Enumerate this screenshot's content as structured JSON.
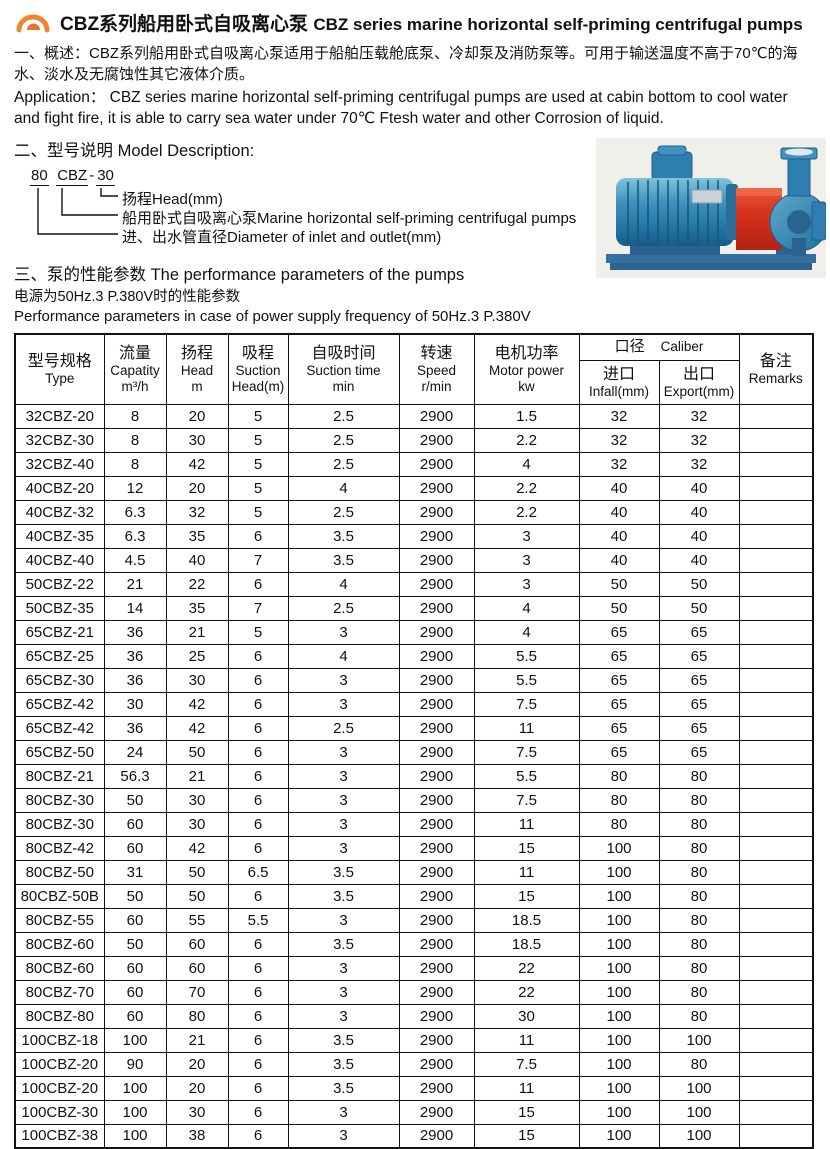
{
  "colors": {
    "accent_orange": "#ef8632",
    "accent_orange_dark": "#e87722",
    "pump_blue": "#2f7fae",
    "pump_blue_dark": "#1f5e8a",
    "pump_red": "#d7311f",
    "table_border": "#111111"
  },
  "header": {
    "title_zh": "CBZ系列船用卧式自吸离心泵",
    "title_en": "CBZ series marine horizontal self-priming centrifugal pumps",
    "logo_icon": "orange-arc-logo"
  },
  "overview": {
    "text_zh": "一、概述：CBZ系列船用卧式自吸离心泵适用于船舶压载舱底泵、冷却泵及消防泵等。可用于输送温度不高于70℃的海水、淡水及无腐蚀性其它液体介质。",
    "text_en": "Application：  CBZ series marine horizontal self-priming centrifugal pumps are used at cabin bottom to cool water and fight fire, it is able to carry sea water under 70℃ Ftesh water and other Corrosion of liquid."
  },
  "model_section": {
    "heading": "二、型号说明  Model Description:",
    "code_parts": {
      "size": "80",
      "series": "CBZ",
      "dash": "-",
      "head": "30"
    },
    "labels": [
      "扬程Head(mm)",
      "船用卧式自吸离心泵Marine horizontal self-priming centrifugal pumps",
      "进、出水管直径Diameter of inlet and outlet(mm)"
    ]
  },
  "performance_section": {
    "heading": "三、泵的性能参数  The performance parameters of the pumps",
    "note_zh": "电源为50Hz.3 P.380V时的性能参数",
    "note_en": "Performance parameters in case of power supply frequency of 50Hz.3 P.380V"
  },
  "table": {
    "header": {
      "type": {
        "zh": "型号规格",
        "en": "Type"
      },
      "capacity": {
        "zh": "流量",
        "en": "Capatity",
        "sub": "m³/h"
      },
      "head": {
        "zh": "扬程",
        "en": "Head",
        "sub": "m"
      },
      "suction_head": {
        "zh": "吸程",
        "en": "Suction",
        "sub": "Head(m)"
      },
      "suction_time": {
        "zh": "自吸时间",
        "en": "Suction time",
        "sub": "min"
      },
      "speed": {
        "zh": "转速",
        "en": "Speed",
        "sub": "r/min"
      },
      "motor_power": {
        "zh": "电机功率",
        "en": "Motor power",
        "sub": "kw"
      },
      "caliber": {
        "zh": "口径",
        "en": "Caliber"
      },
      "infall": {
        "zh": "进口",
        "en": "Infall(mm)"
      },
      "export": {
        "zh": "出口",
        "en": "Export(mm)"
      },
      "remarks": {
        "zh": "备注",
        "en": "Remarks"
      }
    },
    "col_keys": [
      "type",
      "capacity",
      "head",
      "suction_head",
      "suction_time",
      "speed",
      "motor_power",
      "infall",
      "export",
      "remarks"
    ],
    "rows": [
      [
        "32CBZ-20",
        "8",
        "20",
        "5",
        "2.5",
        "2900",
        "1.5",
        "32",
        "32",
        ""
      ],
      [
        "32CBZ-30",
        "8",
        "30",
        "5",
        "2.5",
        "2900",
        "2.2",
        "32",
        "32",
        ""
      ],
      [
        "32CBZ-40",
        "8",
        "42",
        "5",
        "2.5",
        "2900",
        "4",
        "32",
        "32",
        ""
      ],
      [
        "40CBZ-20",
        "12",
        "20",
        "5",
        "4",
        "2900",
        "2.2",
        "40",
        "40",
        ""
      ],
      [
        "40CBZ-32",
        "6.3",
        "32",
        "5",
        "2.5",
        "2900",
        "2.2",
        "40",
        "40",
        ""
      ],
      [
        "40CBZ-35",
        "6.3",
        "35",
        "6",
        "3.5",
        "2900",
        "3",
        "40",
        "40",
        ""
      ],
      [
        "40CBZ-40",
        "4.5",
        "40",
        "7",
        "3.5",
        "2900",
        "3",
        "40",
        "40",
        ""
      ],
      [
        "50CBZ-22",
        "21",
        "22",
        "6",
        "4",
        "2900",
        "3",
        "50",
        "50",
        ""
      ],
      [
        "50CBZ-35",
        "14",
        "35",
        "7",
        "2.5",
        "2900",
        "4",
        "50",
        "50",
        ""
      ],
      [
        "65CBZ-21",
        "36",
        "21",
        "5",
        "3",
        "2900",
        "4",
        "65",
        "65",
        ""
      ],
      [
        "65CBZ-25",
        "36",
        "25",
        "6",
        "4",
        "2900",
        "5.5",
        "65",
        "65",
        ""
      ],
      [
        "65CBZ-30",
        "36",
        "30",
        "6",
        "3",
        "2900",
        "5.5",
        "65",
        "65",
        ""
      ],
      [
        "65CBZ-42",
        "30",
        "42",
        "6",
        "3",
        "2900",
        "7.5",
        "65",
        "65",
        ""
      ],
      [
        "65CBZ-42",
        "36",
        "42",
        "6",
        "2.5",
        "2900",
        "11",
        "65",
        "65",
        ""
      ],
      [
        "65CBZ-50",
        "24",
        "50",
        "6",
        "3",
        "2900",
        "7.5",
        "65",
        "65",
        ""
      ],
      [
        "80CBZ-21",
        "56.3",
        "21",
        "6",
        "3",
        "2900",
        "5.5",
        "80",
        "80",
        ""
      ],
      [
        "80CBZ-30",
        "50",
        "30",
        "6",
        "3",
        "2900",
        "7.5",
        "80",
        "80",
        ""
      ],
      [
        "80CBZ-30",
        "60",
        "30",
        "6",
        "3",
        "2900",
        "11",
        "80",
        "80",
        ""
      ],
      [
        "80CBZ-42",
        "60",
        "42",
        "6",
        "3",
        "2900",
        "15",
        "100",
        "80",
        ""
      ],
      [
        "80CBZ-50",
        "31",
        "50",
        "6.5",
        "3.5",
        "2900",
        "11",
        "100",
        "80",
        ""
      ],
      [
        "80CBZ-50B",
        "50",
        "50",
        "6",
        "3.5",
        "2900",
        "15",
        "100",
        "80",
        ""
      ],
      [
        "80CBZ-55",
        "60",
        "55",
        "5.5",
        "3",
        "2900",
        "18.5",
        "100",
        "80",
        ""
      ],
      [
        "80CBZ-60",
        "50",
        "60",
        "6",
        "3.5",
        "2900",
        "18.5",
        "100",
        "80",
        ""
      ],
      [
        "80CBZ-60",
        "60",
        "60",
        "6",
        "3",
        "2900",
        "22",
        "100",
        "80",
        ""
      ],
      [
        "80CBZ-70",
        "60",
        "70",
        "6",
        "3",
        "2900",
        "22",
        "100",
        "80",
        ""
      ],
      [
        "80CBZ-80",
        "60",
        "80",
        "6",
        "3",
        "2900",
        "30",
        "100",
        "80",
        ""
      ],
      [
        "100CBZ-18",
        "100",
        "21",
        "6",
        "3.5",
        "2900",
        "11",
        "100",
        "100",
        ""
      ],
      [
        "100CBZ-20",
        "90",
        "20",
        "6",
        "3.5",
        "2900",
        "7.5",
        "100",
        "80",
        ""
      ],
      [
        "100CBZ-20",
        "100",
        "20",
        "6",
        "3.5",
        "2900",
        "11",
        "100",
        "100",
        ""
      ],
      [
        "100CBZ-30",
        "100",
        "30",
        "6",
        "3",
        "2900",
        "15",
        "100",
        "100",
        ""
      ],
      [
        "100CBZ-38",
        "100",
        "38",
        "6",
        "3",
        "2900",
        "15",
        "100",
        "100",
        ""
      ]
    ]
  }
}
